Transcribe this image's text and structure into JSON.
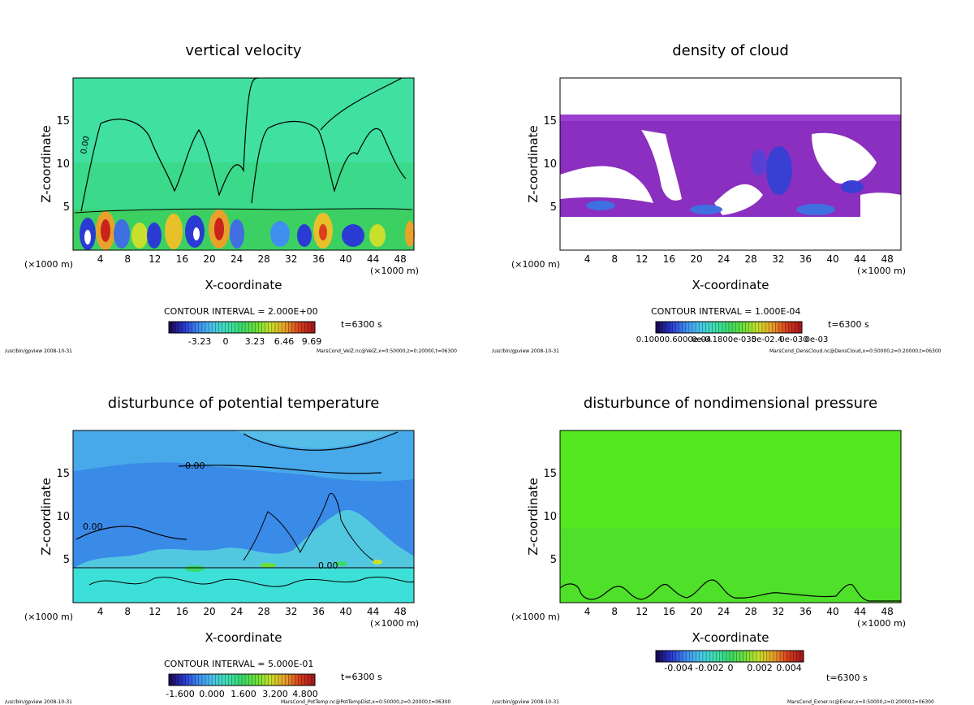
{
  "panels": [
    {
      "id": "vertical-velocity",
      "title": "vertical velocity",
      "contour_interval": "CONTOUR INTERVAL = 2.000E+00",
      "time_label": "t=6300 s",
      "colorbar_ticks": [
        "-3.23",
        "0",
        "3.23",
        "6.46",
        "9.69"
      ],
      "colorbar_colors": [
        "#1a0a5a",
        "#2a3bd4",
        "#3f8ff0",
        "#49c6e8",
        "#3fe0b0",
        "#3bd96b",
        "#6ae03a",
        "#c8e02c",
        "#e8a22a",
        "#d8401e",
        "#a8181c"
      ],
      "footer_left": "/usr/bin/gpview   2008-10-31",
      "footer_right": "MarsCond_VelZ.nc@VelZ,x=0:50000,z=0:20000,t=06300",
      "contour_label": "0.00"
    },
    {
      "id": "density-of-cloud",
      "title": "density of cloud",
      "contour_interval": "CONTOUR INTERVAL = 1.000E-04",
      "time_label": "t=6300 s",
      "colorbar_ticks": [
        "0.10000.6000e-04",
        "0e-0.1800e-035",
        "0e-02.4",
        "0e-030",
        "0e-03"
      ],
      "colorbar_colors": [
        "#1a0a5a",
        "#2a3bd4",
        "#3f8ff0",
        "#49c6e8",
        "#3fe0b0",
        "#3bd96b",
        "#6ae03a",
        "#c8e02c",
        "#e8a22a",
        "#d8401e",
        "#a8181c"
      ],
      "footer_left": "/usr/bin/gpview   2008-10-31",
      "footer_right": "MarsCond_DensCloud.nc@DensCloud,x=0:50000,z=0:20000,t=06300"
    },
    {
      "id": "disturbance-potential-temperature",
      "title": "disturbunce of potential temperature",
      "contour_interval": "CONTOUR INTERVAL = 5.000E-01",
      "time_label": "t=6300 s",
      "colorbar_ticks": [
        "-1.600",
        "0.000",
        "1.600",
        "3.200",
        "4.800"
      ],
      "colorbar_colors": [
        "#1a0a5a",
        "#2a3bd4",
        "#3f8ff0",
        "#49c6e8",
        "#3fe0b0",
        "#3bd96b",
        "#6ae03a",
        "#c8e02c",
        "#e8a22a",
        "#d8401e",
        "#a8181c"
      ],
      "footer_left": "/usr/bin/gpview   2008-10-31",
      "footer_right": "MarsCond_PotTemp.nc@PotTempDist,x=0:50000,z=0:20000,t=06300",
      "contour_label": "0.00"
    },
    {
      "id": "disturbance-nondimensional-pressure",
      "title": "disturbunce of nondimensional pressure",
      "time_label": "t=6300 s",
      "colorbar_ticks": [
        "-0.004",
        "-0.002",
        "0",
        "0.002",
        "0.004"
      ],
      "colorbar_colors": [
        "#1a0a5a",
        "#2a3bd4",
        "#3f8ff0",
        "#49c6e8",
        "#3fe0b0",
        "#3bd96b",
        "#6ae03a",
        "#c8e02c",
        "#e8a22a",
        "#d8401e",
        "#a8181c"
      ],
      "footer_left": "/usr/bin/gpview   2008-10-31",
      "footer_right": "MarsCond_Exner.nc@Exner,x=0:50000,z=0:20000,t=06300"
    }
  ],
  "chart_data": [
    {
      "type": "heatmap",
      "title": "vertical velocity",
      "xlabel": "X-coordinate",
      "ylabel": "Z-coordinate",
      "x_unit_label": "(x1000 m)",
      "xticks": [
        4,
        8,
        12,
        16,
        20,
        24,
        28,
        32,
        36,
        40,
        44,
        48
      ],
      "yticks": [
        5,
        10,
        15
      ],
      "xlim": [
        0,
        50
      ],
      "ylim": [
        0,
        20
      ],
      "color_range": [
        -3.23,
        9.69
      ],
      "cells": [
        {
          "x": [
            0,
            50
          ],
          "z": [
            12,
            20
          ],
          "value": 0.2
        },
        {
          "x": [
            0,
            50
          ],
          "z": [
            6,
            12
          ],
          "value": 0.6
        },
        {
          "x": [
            0,
            50
          ],
          "z": [
            0,
            3.5
          ],
          "value": 1.5
        },
        {
          "x": [
            1.5,
            2.5
          ],
          "z": [
            0.5,
            3
          ],
          "value": -3.2
        },
        {
          "x": [
            4,
            6
          ],
          "z": [
            0.5,
            3.5
          ],
          "value": 8.5
        },
        {
          "x": [
            7,
            9
          ],
          "z": [
            0.5,
            3
          ],
          "value": -2.5
        },
        {
          "x": [
            10,
            12
          ],
          "z": [
            0.5,
            3
          ],
          "value": 4.0
        },
        {
          "x": [
            14,
            16
          ],
          "z": [
            0.5,
            3
          ],
          "value": 5.5
        },
        {
          "x": [
            17,
            19
          ],
          "z": [
            0.5,
            3
          ],
          "value": -3.0
        },
        {
          "x": [
            21,
            23
          ],
          "z": [
            0.5,
            3.5
          ],
          "value": 9.5
        },
        {
          "x": [
            24,
            26
          ],
          "z": [
            0.5,
            3
          ],
          "value": -2.0
        },
        {
          "x": [
            31,
            33
          ],
          "z": [
            0.5,
            3
          ],
          "value": -1.5
        },
        {
          "x": [
            36,
            38
          ],
          "z": [
            0.5,
            3.5
          ],
          "value": 7.0
        },
        {
          "x": [
            40,
            42
          ],
          "z": [
            0.5,
            3
          ],
          "value": -2.5
        },
        {
          "x": [
            45,
            47
          ],
          "z": [
            0.5,
            3
          ],
          "value": 3.0
        },
        {
          "x": [
            49,
            50
          ],
          "z": [
            0.5,
            3
          ],
          "value": 8.0
        }
      ]
    },
    {
      "type": "heatmap",
      "title": "density of cloud",
      "xlabel": "X-coordinate",
      "ylabel": "Z-coordinate",
      "x_unit_label": "(x1000 m)",
      "xticks": [
        4,
        8,
        12,
        16,
        20,
        24,
        28,
        32,
        36,
        40,
        44,
        48
      ],
      "yticks": [
        5,
        10,
        15
      ],
      "xlim": [
        0,
        50
      ],
      "ylim": [
        0,
        20
      ],
      "color_range": [
        0.0001,
        0.0003
      ],
      "cells": [
        {
          "x": [
            0,
            50
          ],
          "z": [
            4,
            16
          ],
          "value": 0.00012
        },
        {
          "x": [
            29,
            34
          ],
          "z": [
            6,
            11
          ],
          "value": 0.00022
        },
        {
          "x": [
            8,
            12
          ],
          "z": [
            4,
            5.5
          ],
          "value": 0.0002
        },
        {
          "x": [
            17,
            20
          ],
          "z": [
            4,
            5
          ],
          "value": 0.00025
        },
        {
          "x": [
            37,
            41
          ],
          "z": [
            4,
            5
          ],
          "value": 0.00024
        },
        {
          "x": [
            45,
            49
          ],
          "z": [
            7,
            9
          ],
          "value": 0.00021
        }
      ]
    },
    {
      "type": "heatmap",
      "title": "disturbunce of potential temperature",
      "xlabel": "X-coordinate",
      "ylabel": "Z-coordinate",
      "x_unit_label": "(x1000 m)",
      "xticks": [
        4,
        8,
        12,
        16,
        20,
        24,
        28,
        32,
        36,
        40,
        44,
        48
      ],
      "yticks": [
        5,
        10,
        15
      ],
      "xlim": [
        0,
        50
      ],
      "ylim": [
        0,
        20
      ],
      "color_range": [
        -1.6,
        4.8
      ],
      "cells": [
        {
          "x": [
            0,
            50
          ],
          "z": [
            15,
            20
          ],
          "value": -0.2
        },
        {
          "x": [
            0,
            50
          ],
          "z": [
            4,
            15
          ],
          "value": -0.6
        },
        {
          "x": [
            0,
            50
          ],
          "z": [
            0,
            4
          ],
          "value": 0.4
        },
        {
          "x": [
            10,
            45
          ],
          "z": [
            4.2,
            5.2
          ],
          "value": 1.0
        }
      ]
    },
    {
      "type": "heatmap",
      "title": "disturbunce of nondimensional pressure",
      "xlabel": "X-coordinate",
      "ylabel": "Z-coordinate",
      "x_unit_label": "(x1000 m)",
      "xticks": [
        4,
        8,
        12,
        16,
        20,
        24,
        28,
        32,
        36,
        40,
        44,
        48
      ],
      "yticks": [
        5,
        10,
        15
      ],
      "xlim": [
        0,
        50
      ],
      "ylim": [
        0,
        20
      ],
      "color_range": [
        -0.004,
        0.004
      ],
      "cells": [
        {
          "x": [
            0,
            50
          ],
          "z": [
            0,
            20
          ],
          "value": 0.0006
        }
      ]
    }
  ],
  "shared": {
    "xlabel": "X-coordinate",
    "ylabel": "Z-coordinate",
    "x_unit_label": "(×1000 m)"
  }
}
